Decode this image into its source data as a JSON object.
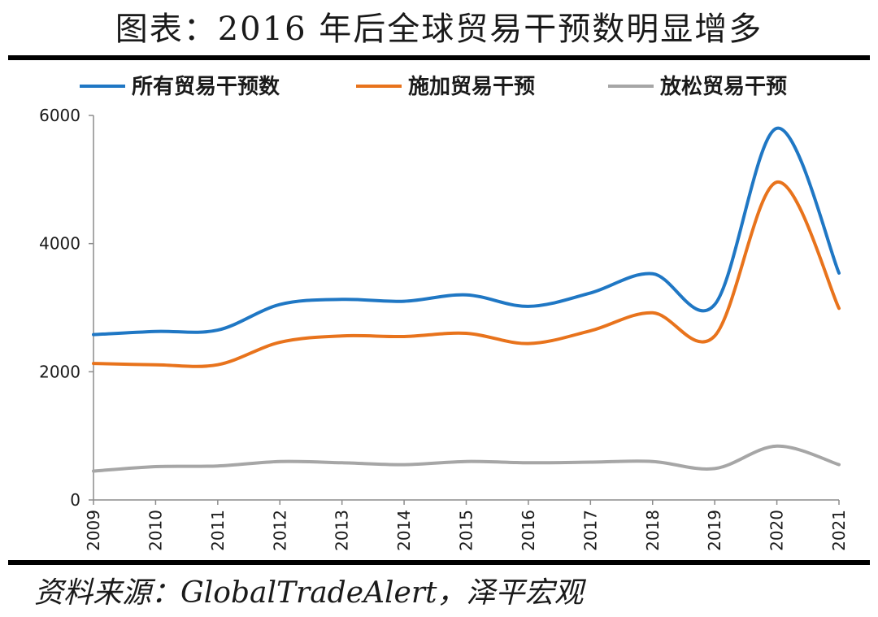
{
  "title": "图表：2016 年后全球贸易干预数明显增多",
  "source": "资料来源：GlobalTradeAlert，泽平宏观",
  "chart_data": {
    "type": "line",
    "title": "图表：2016 年后全球贸易干预数明显增多",
    "xlabel": "",
    "ylabel": "",
    "x": [
      "2009",
      "2010",
      "2011",
      "2012",
      "2013",
      "2014",
      "2015",
      "2016",
      "2017",
      "2018",
      "2019",
      "2020",
      "2021"
    ],
    "ylim": [
      0,
      6000
    ],
    "yticks": [
      "0",
      "2000",
      "4000",
      "6000"
    ],
    "grid": false,
    "legend_position": "top",
    "smooth": true,
    "series": [
      {
        "name": "所有贸易干预数",
        "color": "#1F77C4",
        "values": [
          2580,
          2630,
          2650,
          3050,
          3130,
          3100,
          3200,
          3020,
          3230,
          3530,
          3050,
          5800,
          3540
        ]
      },
      {
        "name": "施加贸易干预",
        "color": "#E8731C",
        "values": [
          2130,
          2110,
          2110,
          2460,
          2560,
          2550,
          2600,
          2440,
          2640,
          2920,
          2560,
          4960,
          2990
        ]
      },
      {
        "name": "放松贸易干预",
        "color": "#A6A6A6",
        "values": [
          450,
          520,
          530,
          600,
          580,
          550,
          600,
          580,
          590,
          600,
          490,
          840,
          550
        ]
      }
    ]
  }
}
